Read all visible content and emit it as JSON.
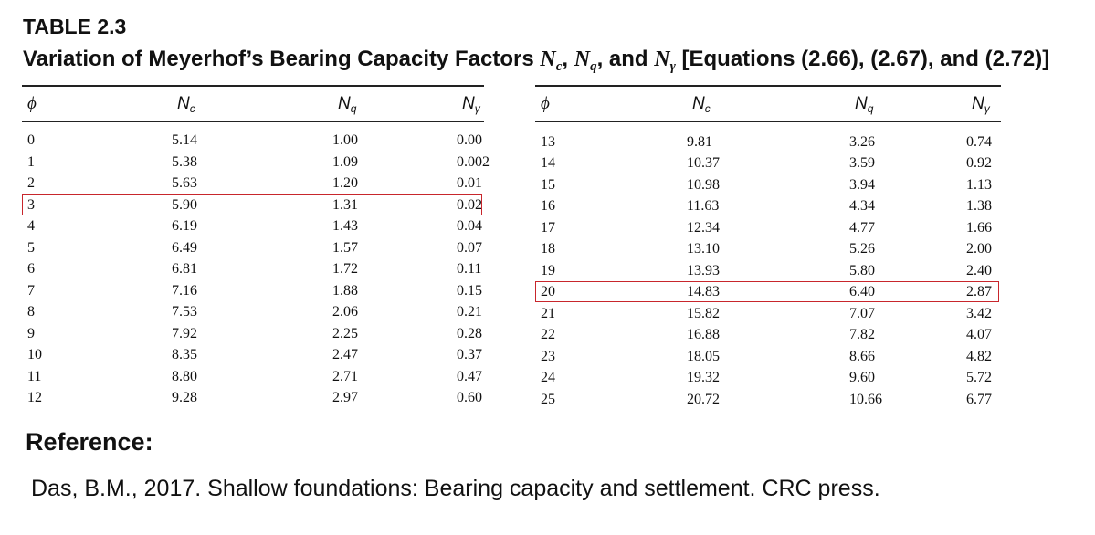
{
  "table_number": "TABLE 2.3",
  "table_title": {
    "prefix": "Variation of Meyerhof’s Bearing Capacity Factors ",
    "sym1": "N",
    "sub1": "c",
    "sep1": ", ",
    "sym2": "N",
    "sub2": "q",
    "sep2": ", and ",
    "sym3": "N",
    "sub3": "γ",
    "suffix": " [Equations (2.66), (2.67), and (2.72)]"
  },
  "columns": [
    {
      "sym": "ϕ",
      "sub": ""
    },
    {
      "sym": "N",
      "sub": "c"
    },
    {
      "sym": "N",
      "sub": "q"
    },
    {
      "sym": "N",
      "sub": "γ"
    }
  ],
  "left_rows": [
    [
      "0",
      "5.14",
      "1.00",
      "0.00"
    ],
    [
      "1",
      "5.38",
      "1.09",
      "0.002"
    ],
    [
      "2",
      "5.63",
      "1.20",
      "0.01"
    ],
    [
      "3",
      "5.90",
      "1.31",
      "0.02"
    ],
    [
      "4",
      "6.19",
      "1.43",
      "0.04"
    ],
    [
      "5",
      "6.49",
      "1.57",
      "0.07"
    ],
    [
      "6",
      "6.81",
      "1.72",
      "0.11"
    ],
    [
      "7",
      "7.16",
      "1.88",
      "0.15"
    ],
    [
      "8",
      "7.53",
      "2.06",
      "0.21"
    ],
    [
      "9",
      "7.92",
      "2.25",
      "0.28"
    ],
    [
      "10",
      "8.35",
      "2.47",
      "0.37"
    ],
    [
      "11",
      "8.80",
      "2.71",
      "0.47"
    ],
    [
      "12",
      "9.28",
      "2.97",
      "0.60"
    ]
  ],
  "right_rows": [
    [
      "13",
      "9.81",
      "3.26",
      "0.74"
    ],
    [
      "14",
      "10.37",
      "3.59",
      "0.92"
    ],
    [
      "15",
      "10.98",
      "3.94",
      "1.13"
    ],
    [
      "16",
      "11.63",
      "4.34",
      "1.38"
    ],
    [
      "17",
      "12.34",
      "4.77",
      "1.66"
    ],
    [
      "18",
      "13.10",
      "5.26",
      "2.00"
    ],
    [
      "19",
      "13.93",
      "5.80",
      "2.40"
    ],
    [
      "20",
      "14.83",
      "6.40",
      "2.87"
    ],
    [
      "21",
      "15.82",
      "7.07",
      "3.42"
    ],
    [
      "22",
      "16.88",
      "7.82",
      "4.07"
    ],
    [
      "23",
      "18.05",
      "8.66",
      "4.82"
    ],
    [
      "24",
      "19.32",
      "9.60",
      "5.72"
    ],
    [
      "25",
      "20.72",
      "10.66",
      "6.77"
    ]
  ],
  "highlighted_rows": {
    "left_phi": "3",
    "right_phi": "20"
  },
  "highlight_color": "#c8262c",
  "reference": {
    "heading": "Reference:",
    "text": "Das, B.M., 2017. Shallow foundations: Bearing capacity and settlement. CRC press."
  }
}
